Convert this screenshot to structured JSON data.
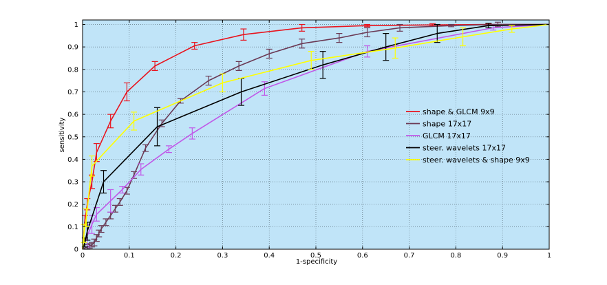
{
  "chart_data": {
    "type": "line",
    "title": "",
    "xlabel": "1-specificity",
    "ylabel": "sensitivity",
    "xlim": [
      0,
      1
    ],
    "ylim": [
      0,
      1.02
    ],
    "xticks": [
      0,
      0.1,
      0.2,
      0.3,
      0.4,
      0.5,
      0.6,
      0.7,
      0.8,
      0.9,
      1
    ],
    "yticks": [
      0,
      0.1,
      0.2,
      0.3,
      0.4,
      0.5,
      0.6,
      0.7,
      0.8,
      0.9,
      1
    ],
    "xtick_labels": [
      "0",
      "0.1",
      "0.2",
      "0.3",
      "0.4",
      "0.5",
      "0.6",
      "0.7",
      "0.8",
      "0.9",
      "1"
    ],
    "ytick_labels": [
      "0",
      "0.1",
      "0.2",
      "0.3",
      "0.4",
      "0.5",
      "0.6",
      "0.7",
      "0.8",
      "0.9",
      "1"
    ],
    "grid": true,
    "background_color": "#c0e4f8",
    "legend_position": "right",
    "series": [
      {
        "name": "shape & GLCM 9x9",
        "color": "#e8141e",
        "x": [
          0,
          0.005,
          0.01,
          0.02,
          0.03,
          0.06,
          0.095,
          0.155,
          0.24,
          0.345,
          0.47,
          0.61,
          0.75,
          0.87,
          1
        ],
        "y": [
          0,
          0.13,
          0.2,
          0.3,
          0.43,
          0.57,
          0.7,
          0.815,
          0.905,
          0.955,
          0.985,
          0.995,
          0.998,
          1,
          1
        ],
        "err": [
          0,
          0.02,
          0.025,
          0.03,
          0.04,
          0.03,
          0.04,
          0.02,
          0.015,
          0.025,
          0.015,
          0.005,
          0.005,
          0.002,
          0
        ]
      },
      {
        "name": "shape 17x17",
        "color": "#6b3a55",
        "x": [
          0,
          0.01,
          0.015,
          0.02,
          0.025,
          0.03,
          0.035,
          0.04,
          0.05,
          0.06,
          0.07,
          0.08,
          0.095,
          0.11,
          0.135,
          0.17,
          0.21,
          0.27,
          0.335,
          0.4,
          0.47,
          0.55,
          0.61,
          0.68,
          0.79,
          0.89,
          1
        ],
        "y": [
          0,
          0.01,
          0.015,
          0.02,
          0.03,
          0.05,
          0.07,
          0.09,
          0.12,
          0.15,
          0.18,
          0.21,
          0.26,
          0.33,
          0.45,
          0.56,
          0.66,
          0.75,
          0.815,
          0.87,
          0.915,
          0.94,
          0.965,
          0.985,
          0.995,
          1,
          1
        ],
        "err": [
          0,
          0.01,
          0.01,
          0.01,
          0.015,
          0.015,
          0.015,
          0.015,
          0.015,
          0.015,
          0.015,
          0.015,
          0.015,
          0.015,
          0.015,
          0.015,
          0.01,
          0.02,
          0.02,
          0.02,
          0.02,
          0.02,
          0.02,
          0.015,
          0.005,
          0.01,
          0
        ]
      },
      {
        "name": "GLCM 17x17",
        "color": "#c058e8",
        "x": [
          0,
          0.01,
          0.02,
          0.03,
          0.06,
          0.085,
          0.125,
          0.185,
          0.235,
          0.39,
          0.61,
          0.88,
          1
        ],
        "y": [
          0,
          0.06,
          0.11,
          0.155,
          0.215,
          0.265,
          0.355,
          0.445,
          0.515,
          0.715,
          0.88,
          0.985,
          1
        ],
        "err": [
          0,
          0.05,
          0.04,
          0.03,
          0.05,
          0.015,
          0.025,
          0.015,
          0.025,
          0.03,
          0.025,
          0.01,
          0
        ]
      },
      {
        "name": "steer. wavelets 17x17",
        "color": "#000000",
        "x": [
          0,
          0.005,
          0.01,
          0.045,
          0.16,
          0.34,
          0.515,
          0.65,
          0.76,
          0.87,
          1
        ],
        "y": [
          0,
          0.03,
          0.08,
          0.3,
          0.545,
          0.7,
          0.82,
          0.9,
          0.96,
          0.995,
          1
        ],
        "err": [
          0,
          0.02,
          0.04,
          0.05,
          0.085,
          0.06,
          0.06,
          0.06,
          0.04,
          0.01,
          0
        ]
      },
      {
        "name": "steer. wavelets & shape 9x9",
        "color": "#ffff00",
        "x": [
          0,
          0.003,
          0.008,
          0.02,
          0.11,
          0.3,
          0.49,
          0.67,
          0.815,
          0.92,
          1
        ],
        "y": [
          0,
          0.07,
          0.14,
          0.37,
          0.57,
          0.74,
          0.84,
          0.895,
          0.945,
          0.98,
          1
        ],
        "err": [
          0,
          0.04,
          0.04,
          0.045,
          0.04,
          0.04,
          0.04,
          0.045,
          0.04,
          0.015,
          0
        ]
      }
    ]
  }
}
